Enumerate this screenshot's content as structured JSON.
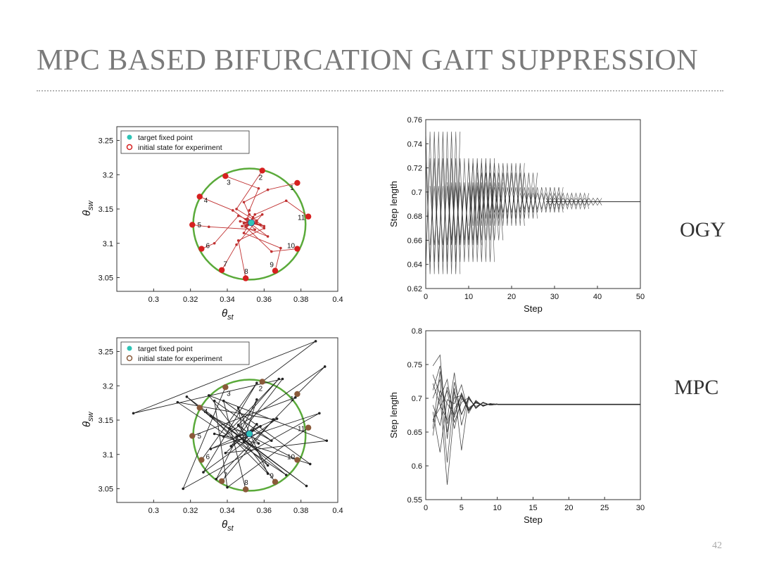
{
  "slide": {
    "title": "MPC BASED BIFURCATION GAIT SUPPRESSION",
    "page_number": "42",
    "row_labels": [
      "OGY",
      "MPC"
    ]
  },
  "chart_data": [
    {
      "id": "ogy-phase",
      "type": "scatter",
      "xlim": [
        0.28,
        0.4
      ],
      "ylim": [
        3.03,
        3.27
      ],
      "xticks": [
        0.3,
        0.32,
        0.34,
        0.36,
        0.38,
        0.4
      ],
      "xtick_labels": [
        "0.3",
        "0.32",
        "0.34",
        "0.36",
        "0.38",
        "0.4"
      ],
      "yticks": [
        3.05,
        3.1,
        3.15,
        3.2,
        3.25
      ],
      "ytick_labels": [
        "3.05",
        "3.1",
        "3.15",
        "3.2",
        "3.25"
      ],
      "xlabel": "θst",
      "ylabel": "θsw",
      "legend": [
        "target fixed point",
        "initial state for experiment"
      ],
      "legend_position": "top-left",
      "grid": false,
      "circle": {
        "cx": 0.352,
        "cy": 3.128,
        "rx": 0.0305,
        "ry": 0.081,
        "color": "#5aaa3a"
      },
      "target": {
        "x": 0.353,
        "y": 3.13,
        "color": "#2ec4b6"
      },
      "initial_color": "#d62020",
      "trajectory_color": "#c03030",
      "initial_points": [
        {
          "label": "1",
          "x": 0.378,
          "y": 3.188
        },
        {
          "label": "2",
          "x": 0.359,
          "y": 3.206
        },
        {
          "label": "3",
          "x": 0.339,
          "y": 3.198
        },
        {
          "label": "4",
          "x": 0.325,
          "y": 3.168
        },
        {
          "label": "5",
          "x": 0.321,
          "y": 3.127
        },
        {
          "label": "6",
          "x": 0.326,
          "y": 3.092
        },
        {
          "label": "7",
          "x": 0.337,
          "y": 3.061
        },
        {
          "label": "8",
          "x": 0.35,
          "y": 3.049
        },
        {
          "label": "9",
          "x": 0.366,
          "y": 3.06
        },
        {
          "label": "10",
          "x": 0.378,
          "y": 3.092
        },
        {
          "label": "11",
          "x": 0.384,
          "y": 3.139
        }
      ],
      "trajectories": [
        [
          [
            0.378,
            3.188
          ],
          [
            0.362,
            3.178
          ],
          [
            0.349,
            3.16
          ],
          [
            0.352,
            3.142
          ],
          [
            0.356,
            3.133
          ],
          [
            0.353,
            3.13
          ]
        ],
        [
          [
            0.359,
            3.206
          ],
          [
            0.345,
            3.15
          ],
          [
            0.36,
            3.125
          ],
          [
            0.347,
            3.132
          ],
          [
            0.353,
            3.13
          ]
        ],
        [
          [
            0.339,
            3.198
          ],
          [
            0.357,
            3.18
          ],
          [
            0.352,
            3.148
          ],
          [
            0.35,
            3.126
          ],
          [
            0.353,
            3.13
          ]
        ],
        [
          [
            0.325,
            3.168
          ],
          [
            0.343,
            3.148
          ],
          [
            0.362,
            3.11
          ],
          [
            0.348,
            3.125
          ],
          [
            0.353,
            3.13
          ]
        ],
        [
          [
            0.321,
            3.127
          ],
          [
            0.33,
            3.124
          ],
          [
            0.355,
            3.12
          ],
          [
            0.35,
            3.135
          ],
          [
            0.353,
            3.13
          ]
        ],
        [
          [
            0.326,
            3.092
          ],
          [
            0.333,
            3.1
          ],
          [
            0.346,
            3.14
          ],
          [
            0.358,
            3.127
          ],
          [
            0.353,
            3.13
          ]
        ],
        [
          [
            0.337,
            3.061
          ],
          [
            0.345,
            3.098
          ],
          [
            0.359,
            3.142
          ],
          [
            0.349,
            3.129
          ],
          [
            0.353,
            3.13
          ]
        ],
        [
          [
            0.35,
            3.049
          ],
          [
            0.346,
            3.104
          ],
          [
            0.36,
            3.122
          ],
          [
            0.351,
            3.136
          ],
          [
            0.353,
            3.13
          ]
        ],
        [
          [
            0.366,
            3.06
          ],
          [
            0.369,
            3.093
          ],
          [
            0.349,
            3.115
          ],
          [
            0.354,
            3.138
          ],
          [
            0.353,
            3.13
          ]
        ],
        [
          [
            0.378,
            3.092
          ],
          [
            0.364,
            3.088
          ],
          [
            0.35,
            3.124
          ],
          [
            0.356,
            3.131
          ],
          [
            0.353,
            3.13
          ]
        ],
        [
          [
            0.384,
            3.139
          ],
          [
            0.372,
            3.162
          ],
          [
            0.355,
            3.142
          ],
          [
            0.351,
            3.127
          ],
          [
            0.353,
            3.13
          ]
        ]
      ]
    },
    {
      "id": "ogy-step",
      "type": "line",
      "xlim": [
        0,
        50
      ],
      "ylim": [
        0.62,
        0.76
      ],
      "xticks": [
        0,
        10,
        20,
        30,
        40,
        50
      ],
      "xtick_labels": [
        "0",
        "10",
        "20",
        "30",
        "40",
        "50"
      ],
      "yticks": [
        0.62,
        0.64,
        0.66,
        0.68,
        0.7,
        0.72,
        0.74,
        0.76
      ],
      "ytick_labels": [
        "0.62",
        "0.64",
        "0.66",
        "0.68",
        "0.7",
        "0.72",
        "0.74",
        "0.76"
      ],
      "xlabel": "Step",
      "ylabel": "Step length",
      "grid": false,
      "color": "#2a2a2a",
      "steady_state": 0.692,
      "envelopes": [
        {
          "from": 0,
          "to": 8,
          "low": 0.632,
          "high": 0.75
        },
        {
          "from": 0,
          "to": 16,
          "low": 0.642,
          "high": 0.728
        },
        {
          "from": 1,
          "to": 13,
          "low": 0.656,
          "high": 0.705
        },
        {
          "from": 5,
          "to": 18,
          "low": 0.66,
          "high": 0.708
        },
        {
          "from": 10,
          "to": 23,
          "low": 0.672,
          "high": 0.724
        },
        {
          "from": 12,
          "to": 26,
          "low": 0.678,
          "high": 0.716
        },
        {
          "from": 15,
          "to": 32,
          "low": 0.683,
          "high": 0.704
        },
        {
          "from": 22,
          "to": 38,
          "low": 0.686,
          "high": 0.699
        },
        {
          "from": 28,
          "to": 41,
          "low": 0.689,
          "high": 0.695
        }
      ]
    },
    {
      "id": "mpc-phase",
      "type": "scatter",
      "xlim": [
        0.28,
        0.4
      ],
      "ylim": [
        3.03,
        3.27
      ],
      "xticks": [
        0.3,
        0.32,
        0.34,
        0.36,
        0.38,
        0.4
      ],
      "xtick_labels": [
        "0.3",
        "0.32",
        "0.34",
        "0.36",
        "0.38",
        "0.4"
      ],
      "yticks": [
        3.05,
        3.1,
        3.15,
        3.2,
        3.25
      ],
      "ytick_labels": [
        "3.05",
        "3.1",
        "3.15",
        "3.2",
        "3.25"
      ],
      "xlabel": "θst",
      "ylabel": "θsw",
      "legend": [
        "target fixed point",
        "initial state for experiment"
      ],
      "legend_position": "top-left",
      "grid": false,
      "circle": {
        "cx": 0.352,
        "cy": 3.128,
        "rx": 0.0305,
        "ry": 0.081,
        "color": "#5aaa3a"
      },
      "target": {
        "x": 0.352,
        "y": 3.13,
        "color": "#2ec4b6"
      },
      "initial_color": "#8a5a3a",
      "trajectory_color": "#222222",
      "initial_points": [
        {
          "label": "1",
          "x": 0.378,
          "y": 3.188
        },
        {
          "label": "2",
          "x": 0.359,
          "y": 3.206
        },
        {
          "label": "3",
          "x": 0.339,
          "y": 3.198
        },
        {
          "label": "4",
          "x": 0.325,
          "y": 3.168
        },
        {
          "label": "5",
          "x": 0.321,
          "y": 3.127
        },
        {
          "label": "6",
          "x": 0.326,
          "y": 3.092
        },
        {
          "label": "7",
          "x": 0.337,
          "y": 3.061
        },
        {
          "label": "8",
          "x": 0.35,
          "y": 3.049
        },
        {
          "label": "9",
          "x": 0.366,
          "y": 3.06
        },
        {
          "label": "10",
          "x": 0.378,
          "y": 3.092
        },
        {
          "label": "11",
          "x": 0.384,
          "y": 3.139
        }
      ],
      "trajectories": [
        [
          [
            0.378,
            3.188
          ],
          [
            0.393,
            3.228
          ],
          [
            0.338,
            3.126
          ],
          [
            0.368,
            3.21
          ],
          [
            0.346,
            3.143
          ],
          [
            0.352,
            3.13
          ]
        ],
        [
          [
            0.359,
            3.206
          ],
          [
            0.388,
            3.265
          ],
          [
            0.289,
            3.16
          ],
          [
            0.37,
            3.21
          ],
          [
            0.342,
            3.112
          ],
          [
            0.352,
            3.13
          ]
        ],
        [
          [
            0.339,
            3.198
          ],
          [
            0.316,
            3.05
          ],
          [
            0.39,
            3.16
          ],
          [
            0.331,
            3.108
          ],
          [
            0.358,
            3.141
          ],
          [
            0.352,
            3.13
          ]
        ],
        [
          [
            0.325,
            3.168
          ],
          [
            0.383,
            3.054
          ],
          [
            0.318,
            3.184
          ],
          [
            0.362,
            3.084
          ],
          [
            0.346,
            3.142
          ],
          [
            0.352,
            3.13
          ]
        ],
        [
          [
            0.321,
            3.127
          ],
          [
            0.377,
            3.183
          ],
          [
            0.334,
            3.064
          ],
          [
            0.356,
            3.18
          ],
          [
            0.349,
            3.118
          ],
          [
            0.352,
            3.13
          ]
        ],
        [
          [
            0.326,
            3.092
          ],
          [
            0.356,
            3.204
          ],
          [
            0.327,
            3.074
          ],
          [
            0.367,
            3.152
          ],
          [
            0.345,
            3.126
          ],
          [
            0.352,
            3.13
          ]
        ],
        [
          [
            0.337,
            3.061
          ],
          [
            0.365,
            3.151
          ],
          [
            0.313,
            3.176
          ],
          [
            0.372,
            3.07
          ],
          [
            0.341,
            3.138
          ],
          [
            0.352,
            3.13
          ]
        ],
        [
          [
            0.35,
            3.049
          ],
          [
            0.338,
            3.178
          ],
          [
            0.385,
            3.086
          ],
          [
            0.333,
            3.13
          ],
          [
            0.357,
            3.116
          ],
          [
            0.352,
            3.13
          ]
        ],
        [
          [
            0.366,
            3.06
          ],
          [
            0.33,
            3.186
          ],
          [
            0.394,
            3.12
          ],
          [
            0.339,
            3.102
          ],
          [
            0.356,
            3.144
          ],
          [
            0.352,
            3.13
          ]
        ],
        [
          [
            0.378,
            3.092
          ],
          [
            0.331,
            3.156
          ],
          [
            0.362,
            3.072
          ],
          [
            0.346,
            3.168
          ],
          [
            0.349,
            3.12
          ],
          [
            0.352,
            3.13
          ]
        ],
        [
          [
            0.384,
            3.139
          ],
          [
            0.34,
            3.052
          ],
          [
            0.333,
            3.178
          ],
          [
            0.364,
            3.12
          ],
          [
            0.354,
            3.135
          ],
          [
            0.352,
            3.13
          ]
        ]
      ]
    },
    {
      "id": "mpc-step",
      "type": "line",
      "xlim": [
        0,
        30
      ],
      "ylim": [
        0.55,
        0.8
      ],
      "xticks": [
        0,
        5,
        10,
        15,
        20,
        25,
        30
      ],
      "xtick_labels": [
        "0",
        "5",
        "10",
        "15",
        "20",
        "25",
        "30"
      ],
      "yticks": [
        0.55,
        0.6,
        0.65,
        0.7,
        0.75,
        0.8
      ],
      "ytick_labels": [
        "0.55",
        "0.6",
        "0.65",
        "0.7",
        "0.75",
        "0.8"
      ],
      "xlabel": "Step",
      "ylabel": "Step length",
      "grid": false,
      "color": "#2a2a2a",
      "steady_state": 0.691,
      "series": [
        [
          0.748,
          0.764,
          0.64,
          0.724,
          0.676,
          0.702,
          0.685,
          0.694,
          0.69,
          0.692
        ],
        [
          0.735,
          0.705,
          0.572,
          0.684,
          0.703,
          0.681,
          0.694,
          0.689,
          0.692,
          0.691
        ],
        [
          0.722,
          0.69,
          0.668,
          0.738,
          0.66,
          0.703,
          0.685,
          0.694,
          0.69,
          0.691
        ],
        [
          0.712,
          0.748,
          0.662,
          0.701,
          0.704,
          0.683,
          0.695,
          0.689,
          0.692,
          0.691
        ],
        [
          0.7,
          0.728,
          0.605,
          0.71,
          0.676,
          0.699,
          0.688,
          0.693,
          0.69,
          0.691
        ],
        [
          0.69,
          0.66,
          0.717,
          0.672,
          0.706,
          0.684,
          0.694,
          0.689,
          0.692,
          0.691
        ],
        [
          0.68,
          0.62,
          0.698,
          0.692,
          0.72,
          0.678,
          0.697,
          0.688,
          0.692,
          0.691
        ],
        [
          0.668,
          0.686,
          0.711,
          0.655,
          0.7,
          0.686,
          0.693,
          0.69,
          0.691,
          0.691
        ],
        [
          0.655,
          0.74,
          0.65,
          0.715,
          0.623,
          0.702,
          0.686,
          0.694,
          0.69,
          0.691
        ],
        [
          0.645,
          0.711,
          0.692,
          0.676,
          0.708,
          0.682,
          0.696,
          0.689,
          0.692,
          0.691
        ],
        [
          0.665,
          0.7,
          0.728,
          0.664,
          0.694,
          0.701,
          0.686,
          0.694,
          0.69,
          0.691
        ]
      ]
    }
  ]
}
